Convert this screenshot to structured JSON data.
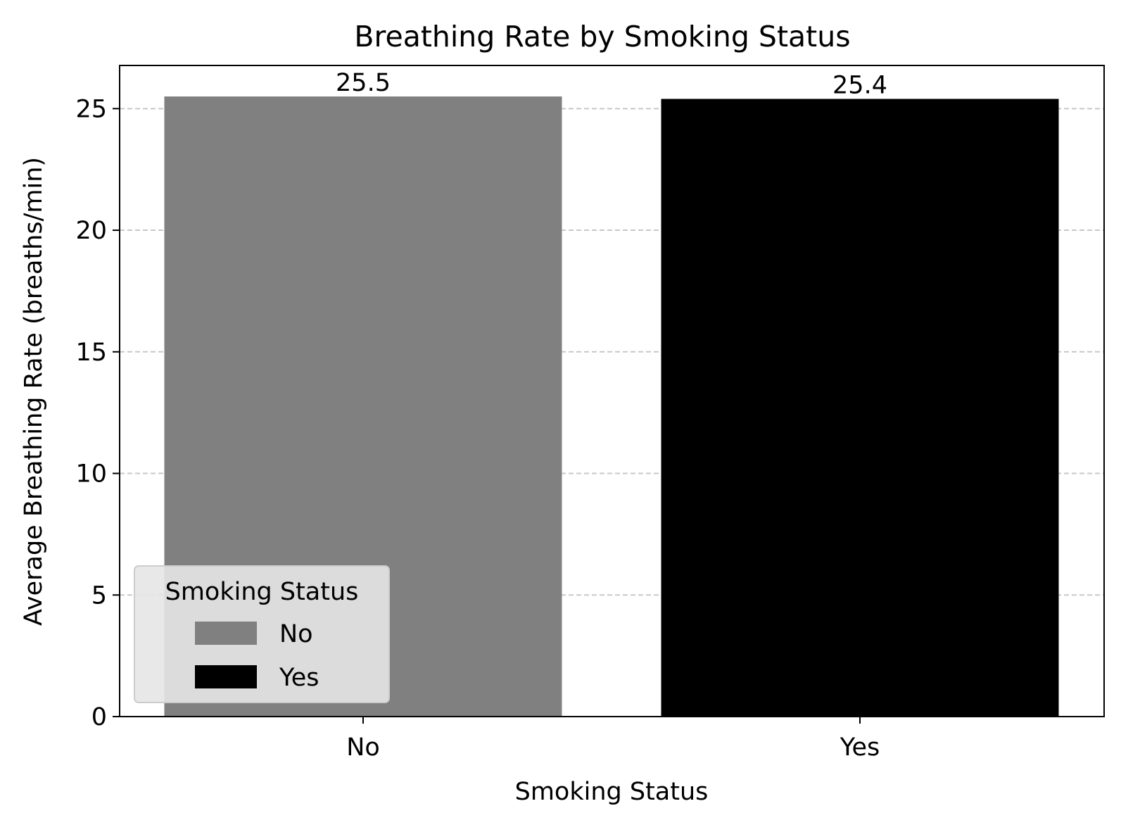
{
  "chart_data": {
    "type": "bar",
    "title": "Breathing Rate by Smoking Status",
    "xlabel": "Smoking Status",
    "ylabel": "Average Breathing Rate (breaths/min)",
    "categories": [
      "No",
      "Yes"
    ],
    "values": [
      25.5,
      25.4
    ],
    "data_labels": [
      "25.5",
      "25.4"
    ],
    "colors": [
      "#808080",
      "#000000"
    ],
    "ylim": [
      0,
      26.775
    ],
    "yticks": [
      0,
      5,
      10,
      15,
      20,
      25
    ],
    "grid": {
      "axis": "y",
      "style": "dashed",
      "color": "#c8c8c8"
    },
    "legend": {
      "title": "Smoking Status",
      "placement": "lower-left",
      "entries": [
        {
          "label": "No",
          "color": "#808080"
        },
        {
          "label": "Yes",
          "color": "#000000"
        }
      ]
    }
  }
}
